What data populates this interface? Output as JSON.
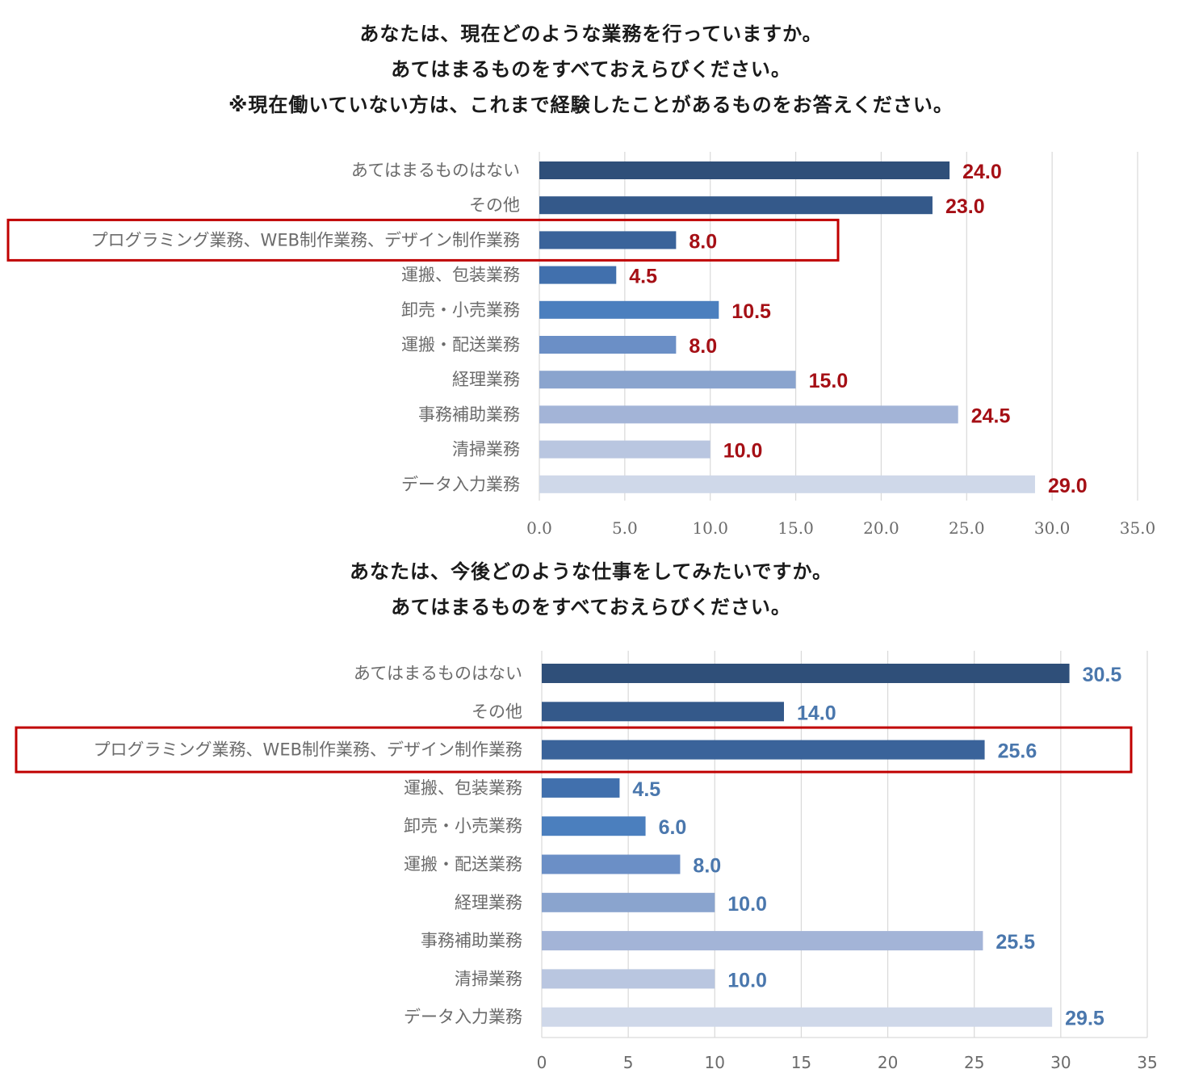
{
  "chart_data": [
    {
      "type": "bar",
      "orientation": "horizontal",
      "title": [
        "あなたは、現在どのような業務を行っていますか。",
        "あてはまるものをすべておえらびください。",
        "※現在働いていない方は、これまで経験したことがあるものをお答えください。"
      ],
      "categories": [
        "あてはまるものはない",
        "その他",
        "プログラミング業務、WEB制作業務、デザイン制作業務",
        "運搬、包装業務",
        "卸売・小売業務",
        "運搬・配送業務",
        "経理業務",
        "事務補助業務",
        "清掃業務",
        "データ入力業務"
      ],
      "values": [
        24.0,
        23.0,
        8.0,
        4.5,
        10.5,
        8.0,
        15.0,
        24.5,
        10.0,
        29.0
      ],
      "value_labels": [
        "24.0",
        "23.0",
        "8.0",
        "4.5",
        "10.5",
        "8.0",
        "15.0",
        "24.5",
        "10.0",
        "29.0"
      ],
      "xlim": [
        0,
        35
      ],
      "xticks": [
        "0.0",
        "5.0",
        "10.0",
        "15.0",
        "20.0",
        "25.0",
        "30.0",
        "35.0"
      ],
      "grid": true,
      "highlighted_category": "プログラミング業務、WEB制作業務、デザイン制作業務",
      "bar_colors": [
        "#2f4f79",
        "#34598a",
        "#3a639a",
        "#4170ad",
        "#4b7fbe",
        "#6b8fc6",
        "#8aa4ce",
        "#a3b4d7",
        "#b9c6e0",
        "#cfd8e9"
      ],
      "value_label_color": "#a50f15"
    },
    {
      "type": "bar",
      "orientation": "horizontal",
      "title": [
        "あなたは、今後どのような仕事をしてみたいですか。",
        "あてはまるものをすべておえらびください。"
      ],
      "categories": [
        "あてはまるものはない",
        "その他",
        "プログラミング業務、WEB制作業務、デザイン制作業務",
        "運搬、包装業務",
        "卸売・小売業務",
        "運搬・配送業務",
        "経理業務",
        "事務補助業務",
        "清掃業務",
        "データ入力業務"
      ],
      "values": [
        30.5,
        14.0,
        25.6,
        4.5,
        6.0,
        8.0,
        10.0,
        25.5,
        10.0,
        29.5
      ],
      "value_labels": [
        "30.5",
        "14.0",
        "25.6",
        "4.5",
        "6.0",
        "8.0",
        "10.0",
        "25.5",
        "10.0",
        "29.5"
      ],
      "xlim": [
        0,
        35
      ],
      "xticks": [
        "0",
        "5",
        "10",
        "15",
        "20",
        "25",
        "30",
        "35"
      ],
      "grid": true,
      "highlighted_category": "プログラミング業務、WEB制作業務、デザイン制作業務",
      "bar_colors": [
        "#2f4f79",
        "#34598a",
        "#3a639a",
        "#4170ad",
        "#4b7fbe",
        "#6b8fc6",
        "#8aa4ce",
        "#a3b4d7",
        "#b9c6e0",
        "#cfd8e9"
      ],
      "value_label_color": "#4a77ad"
    }
  ],
  "highlight_box_color": "#c00000"
}
